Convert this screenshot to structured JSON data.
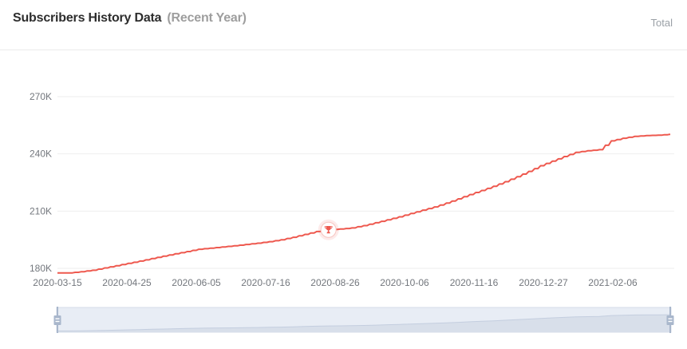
{
  "header": {
    "title": "Subscribers History Data",
    "subtitle": "(Recent Year)",
    "legend_total": "Total"
  },
  "colors": {
    "line": "#ee594f",
    "marker_halo": "rgba(238,89,79,0.12)",
    "marker_ring": "#f7c5c0",
    "grid": "#eeeeee",
    "axis_text": "#73777d",
    "brush_bg": "#e8edf5",
    "brush_border": "#d5dce9",
    "brush_shadow": "#d8dfea",
    "brush_line": "#c4cedf",
    "brush_handle": "#a9b7cc"
  },
  "chart_data": {
    "type": "line",
    "title": "Subscribers History Data (Recent Year)",
    "series_name": "Total",
    "unit": "subscribers (K)",
    "grid": true,
    "legend_position": "top-right",
    "y_ticks": [
      {
        "label": "270K",
        "value": 270
      },
      {
        "label": "240K",
        "value": 240
      },
      {
        "label": "210K",
        "value": 210
      },
      {
        "label": "180K",
        "value": 180
      }
    ],
    "ylim": [
      180,
      270
    ],
    "x_tick_labels": [
      "2020-03-15",
      "2020-04-25",
      "2020-06-05",
      "2020-07-16",
      "2020-08-26",
      "2020-10-06",
      "2020-11-16",
      "2020-12-27",
      "2021-02-06"
    ],
    "milestone_marker": {
      "icon": "trophy",
      "at_value": 200,
      "near_date": "2020-08-20"
    },
    "series": [
      {
        "name": "Total",
        "points": [
          [
            "2020-03-15",
            177.6
          ],
          [
            "2020-03-22",
            177.6
          ],
          [
            "2020-03-29",
            178.2
          ],
          [
            "2020-04-05",
            179.0
          ],
          [
            "2020-04-12",
            180.2
          ],
          [
            "2020-04-19",
            181.4
          ],
          [
            "2020-04-26",
            182.6
          ],
          [
            "2020-05-03",
            183.8
          ],
          [
            "2020-05-10",
            185.1
          ],
          [
            "2020-05-17",
            186.4
          ],
          [
            "2020-05-24",
            187.6
          ],
          [
            "2020-05-31",
            188.8
          ],
          [
            "2020-06-07",
            190.0
          ],
          [
            "2020-06-14",
            190.6
          ],
          [
            "2020-06-21",
            191.2
          ],
          [
            "2020-06-28",
            191.8
          ],
          [
            "2020-07-05",
            192.5
          ],
          [
            "2020-07-12",
            193.2
          ],
          [
            "2020-07-19",
            194.0
          ],
          [
            "2020-07-26",
            195.0
          ],
          [
            "2020-08-02",
            196.3
          ],
          [
            "2020-08-09",
            197.8
          ],
          [
            "2020-08-16",
            199.3
          ],
          [
            "2020-08-23",
            200.2
          ],
          [
            "2020-08-30",
            200.6
          ],
          [
            "2020-09-06",
            201.2
          ],
          [
            "2020-09-13",
            202.4
          ],
          [
            "2020-09-20",
            203.9
          ],
          [
            "2020-09-27",
            205.4
          ],
          [
            "2020-10-04",
            207.0
          ],
          [
            "2020-10-11",
            208.8
          ],
          [
            "2020-10-18",
            210.5
          ],
          [
            "2020-10-25",
            212.2
          ],
          [
            "2020-11-01",
            214.2
          ],
          [
            "2020-11-08",
            216.4
          ],
          [
            "2020-11-15",
            218.7
          ],
          [
            "2020-11-22",
            220.8
          ],
          [
            "2020-11-29",
            223.0
          ],
          [
            "2020-12-06",
            225.4
          ],
          [
            "2020-12-13",
            228.0
          ],
          [
            "2020-12-20",
            230.8
          ],
          [
            "2020-12-27",
            233.8
          ],
          [
            "2021-01-03",
            236.2
          ],
          [
            "2021-01-10",
            238.6
          ],
          [
            "2021-01-17",
            240.8
          ],
          [
            "2021-01-24",
            241.6
          ],
          [
            "2021-01-31",
            242.2
          ],
          [
            "2021-02-07",
            246.8
          ],
          [
            "2021-02-14",
            248.2
          ],
          [
            "2021-02-21",
            249.2
          ],
          [
            "2021-02-28",
            249.6
          ],
          [
            "2021-03-07",
            249.8
          ],
          [
            "2021-03-14",
            250.3
          ]
        ]
      }
    ]
  },
  "brush": {
    "selected_range": "full",
    "left_handle": "drag-handle",
    "right_handle": "drag-handle"
  }
}
